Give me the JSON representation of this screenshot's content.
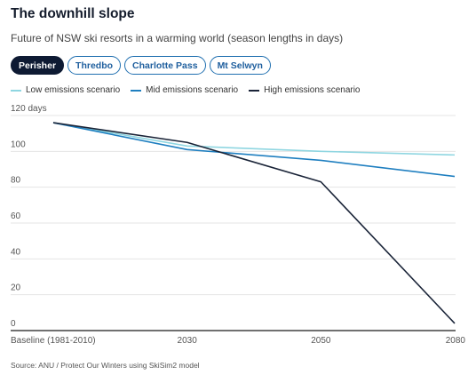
{
  "title": "The downhill slope",
  "subtitle": "Future of NSW ski resorts in a warming world (season lengths in days)",
  "tabs": [
    {
      "label": "Perisher",
      "active": true
    },
    {
      "label": "Thredbo",
      "active": false
    },
    {
      "label": "Charlotte Pass",
      "active": false
    },
    {
      "label": "Mt Selwyn",
      "active": false
    }
  ],
  "source": "Source: ANU / Protect Our Winters using SkiSim2 model",
  "chart_data": {
    "type": "line",
    "title": "The downhill slope",
    "subtitle": "Future of NSW ski resorts in a warming world (season lengths in days)",
    "categories": [
      "Baseline (1981-2010)",
      "2030",
      "2050",
      "2080"
    ],
    "y_tick_labels": [
      "0",
      "20",
      "40",
      "60",
      "80",
      "100",
      "120 days"
    ],
    "ylim": [
      0,
      120
    ],
    "y_ticks": [
      0,
      20,
      40,
      60,
      80,
      100,
      120
    ],
    "grid": true,
    "legend_position": "top-left",
    "series": [
      {
        "name": "Low emissions scenario",
        "color": "#8fd6e1",
        "values": [
          116,
          103,
          100,
          98
        ]
      },
      {
        "name": "Mid emissions scenario",
        "color": "#1f7fc0",
        "values": [
          116,
          101,
          95,
          86
        ]
      },
      {
        "name": "High emissions scenario",
        "color": "#1a2438",
        "values": [
          116,
          105,
          83,
          4
        ]
      }
    ]
  }
}
